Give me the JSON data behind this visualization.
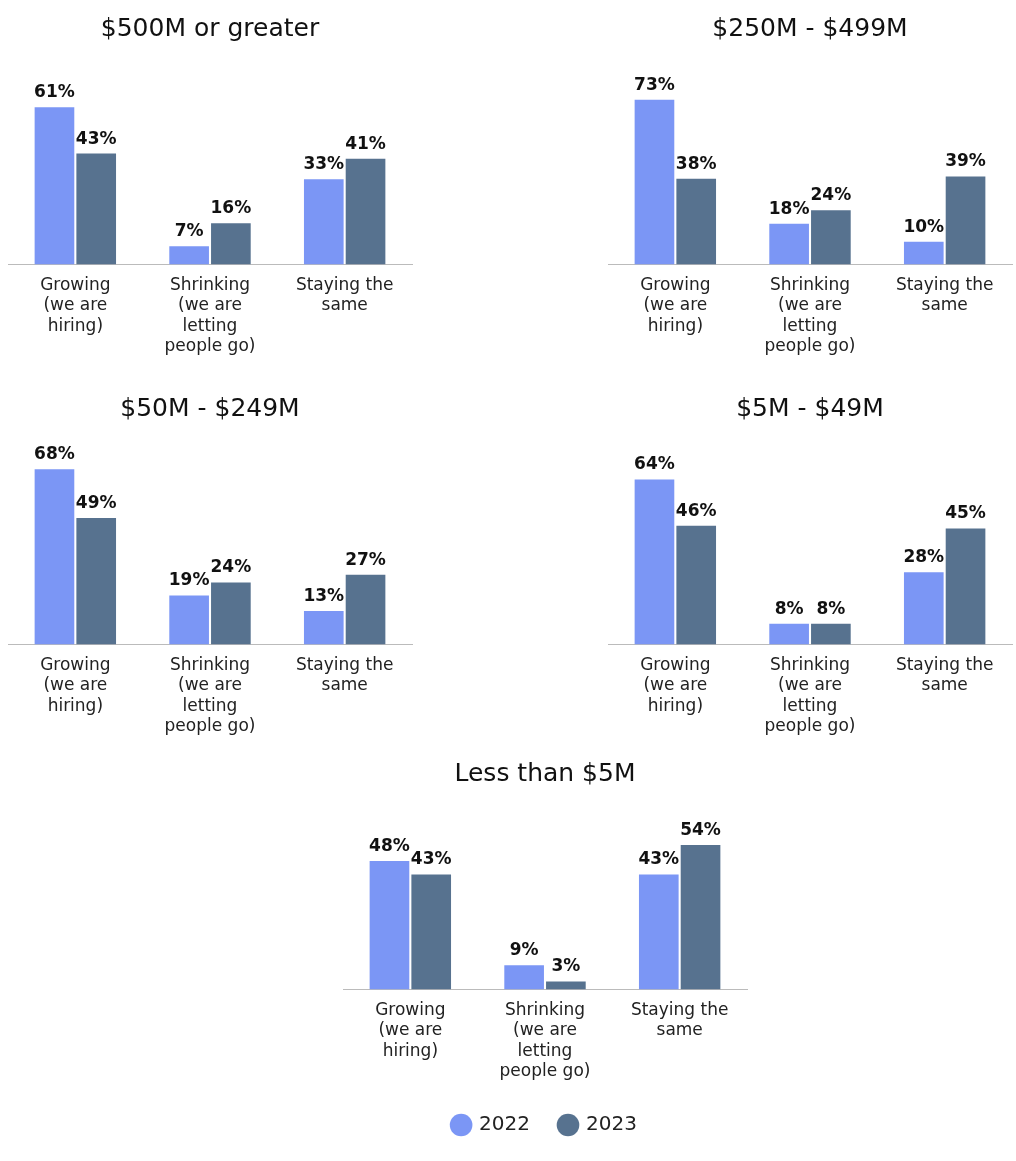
{
  "chart_data": [
    {
      "type": "bar",
      "title": "$500M or greater",
      "categories": [
        "Growing (we are hiring)",
        "Shrinking (we are letting people go)",
        "Staying the same"
      ],
      "series": [
        {
          "color": "#7b96f5",
          "values": [
            61,
            7,
            33
          ],
          "value_labels": [
            "61%",
            "7%",
            "33%"
          ]
        },
        {
          "color": "#57728f",
          "values": [
            43,
            16,
            41
          ],
          "value_labels": [
            "43%",
            "16%",
            "41%"
          ]
        }
      ]
    },
    {
      "type": "bar",
      "title": "$250M - $499M",
      "categories": [
        "Growing (we are hiring)",
        "Shrinking (we are letting people go)",
        "Staying the same"
      ],
      "series": [
        {
          "color": "#7b96f5",
          "values": [
            73,
            18,
            10
          ],
          "value_labels": [
            "73%",
            "18%",
            "10%"
          ]
        },
        {
          "color": "#57728f",
          "values": [
            38,
            24,
            39
          ],
          "value_labels": [
            "38%",
            "24%",
            "39%"
          ]
        }
      ]
    },
    {
      "type": "bar",
      "title": "$50M - $249M",
      "categories": [
        "Growing (we are hiring)",
        "Shrinking (we are letting people go)",
        "Staying the same"
      ],
      "series": [
        {
          "color": "#7b96f5",
          "values": [
            68,
            19,
            13
          ],
          "value_labels": [
            "68%",
            "19%",
            "13%"
          ]
        },
        {
          "color": "#57728f",
          "values": [
            49,
            24,
            27
          ],
          "value_labels": [
            "49%",
            "24%",
            "27%"
          ]
        }
      ]
    },
    {
      "type": "bar",
      "title": "$5M - $49M",
      "categories": [
        "Growing (we are hiring)",
        "Shrinking (we are letting people go)",
        "Staying the same"
      ],
      "series": [
        {
          "color": "#7b96f5",
          "values": [
            64,
            8,
            28
          ],
          "value_labels": [
            "64%",
            "8%",
            "28%"
          ]
        },
        {
          "color": "#57728f",
          "values": [
            46,
            8,
            45
          ],
          "value_labels": [
            "46%",
            "8%",
            "45%"
          ]
        }
      ]
    },
    {
      "type": "bar",
      "title": "Less than $5M",
      "categories": [
        "Growing (we are hiring)",
        "Shrinking (we are letting people go)",
        "Staying the same"
      ],
      "legend": "bottom",
      "series": [
        {
          "name": "2022",
          "color": "#7b96f5",
          "values": [
            48,
            9,
            43
          ],
          "value_labels": [
            "48%",
            "9%",
            "43%"
          ]
        },
        {
          "name": "2023",
          "color": "#57728f",
          "values": [
            43,
            3,
            54
          ],
          "value_labels": [
            "43%",
            "3%",
            "54%"
          ]
        }
      ]
    }
  ]
}
